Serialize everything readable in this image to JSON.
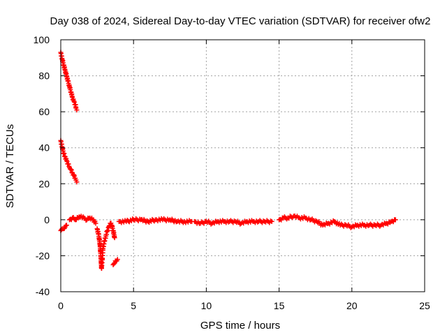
{
  "chart_data": {
    "type": "scatter",
    "title": "Day 038 of 2024, Sidereal Day-to-day VTEC variation (SDTVAR) for receiver ofw2",
    "xlabel": "GPS time / hours",
    "ylabel": "SDTVAR / TECUs",
    "xlim": [
      0,
      25
    ],
    "ylim": [
      -40,
      100
    ],
    "xticks": [
      0,
      5,
      10,
      15,
      20,
      25
    ],
    "xtick_labels": [
      "0",
      "5",
      "10",
      "15",
      "20",
      "25"
    ],
    "yticks": [
      -40,
      -20,
      0,
      20,
      40,
      60,
      80,
      100
    ],
    "ytick_labels": [
      "-40",
      "-20",
      "0",
      "20",
      "40",
      "60",
      "80",
      "100"
    ],
    "grid": true,
    "marker": "+",
    "color": "#ff0000",
    "series": [
      {
        "name": "SDTVAR",
        "segments": [
          {
            "x": [
              0.0,
              0.05,
              0.1,
              0.2,
              0.3,
              0.4,
              0.5,
              0.6,
              0.7,
              0.8,
              0.9,
              1.0,
              1.05,
              1.1
            ],
            "y": [
              93,
              91,
              89,
              86,
              83,
              80,
              77,
              74,
              71,
              68,
              66,
              64,
              62,
              61
            ]
          },
          {
            "x": [
              0.0,
              0.05,
              0.1,
              0.2,
              0.3,
              0.4,
              0.5,
              0.6,
              0.7,
              0.8,
              0.9,
              1.0,
              1.05,
              1.1
            ],
            "y": [
              44,
              42,
              40,
              37,
              35,
              33,
              31,
              29,
              28,
              26,
              25,
              23,
              22,
              21
            ]
          },
          {
            "x": [
              0.0,
              0.1,
              0.2,
              0.3,
              0.4
            ],
            "y": [
              -6,
              -5,
              -5,
              -4,
              -3
            ]
          },
          {
            "x": [
              0.6,
              0.8,
              1.0,
              1.2,
              1.4,
              1.6,
              1.8,
              2.0,
              2.2,
              2.4
            ],
            "y": [
              0,
              1,
              0,
              1,
              2,
              1,
              0,
              1,
              0,
              -2
            ]
          },
          {
            "x": [
              2.5,
              2.6,
              2.7,
              2.75,
              2.8,
              2.85,
              2.9,
              3.0,
              3.1,
              3.2,
              3.3,
              3.4,
              3.5,
              3.6,
              3.7
            ],
            "y": [
              -5,
              -8,
              -14,
              -20,
              -27,
              -22,
              -16,
              -12,
              -9,
              -6,
              -4,
              -2,
              -3,
              -6,
              -10
            ]
          },
          {
            "x": [
              3.6,
              3.7,
              3.8,
              3.9
            ],
            "y": [
              -25,
              -24,
              -23,
              -22
            ]
          },
          {
            "x": [
              4.0,
              4.5,
              5.0,
              5.5,
              6.0,
              6.5,
              7.0,
              7.5,
              8.0,
              8.5,
              9.0
            ],
            "y": [
              -1,
              -1,
              0,
              0,
              -1,
              0,
              0,
              0,
              -1,
              -1,
              -1
            ]
          },
          {
            "x": [
              9.2,
              9.6,
              10.0,
              10.4,
              10.8,
              11.2,
              11.6,
              12.0,
              12.4,
              12.8,
              13.2,
              13.6,
              14.0,
              14.5
            ],
            "y": [
              -1,
              -2,
              -1,
              -2,
              -1,
              -1,
              -1,
              -1,
              -2,
              -1,
              -1,
              -1,
              -1,
              -1
            ]
          },
          {
            "x": [
              15.0,
              15.3,
              15.6,
              16.0,
              16.4,
              16.8,
              17.2,
              17.6,
              18.0,
              18.4,
              18.8,
              19.2,
              19.6,
              20.0,
              20.4,
              20.8,
              21.2,
              21.6,
              22.0,
              22.4,
              22.7,
              23.0
            ],
            "y": [
              0,
              1,
              1,
              2,
              1,
              1,
              0,
              -1,
              -3,
              -2,
              -1,
              -3,
              -3,
              -4,
              -3,
              -3,
              -3,
              -3,
              -3,
              -2,
              -1,
              0
            ]
          }
        ]
      }
    ]
  }
}
